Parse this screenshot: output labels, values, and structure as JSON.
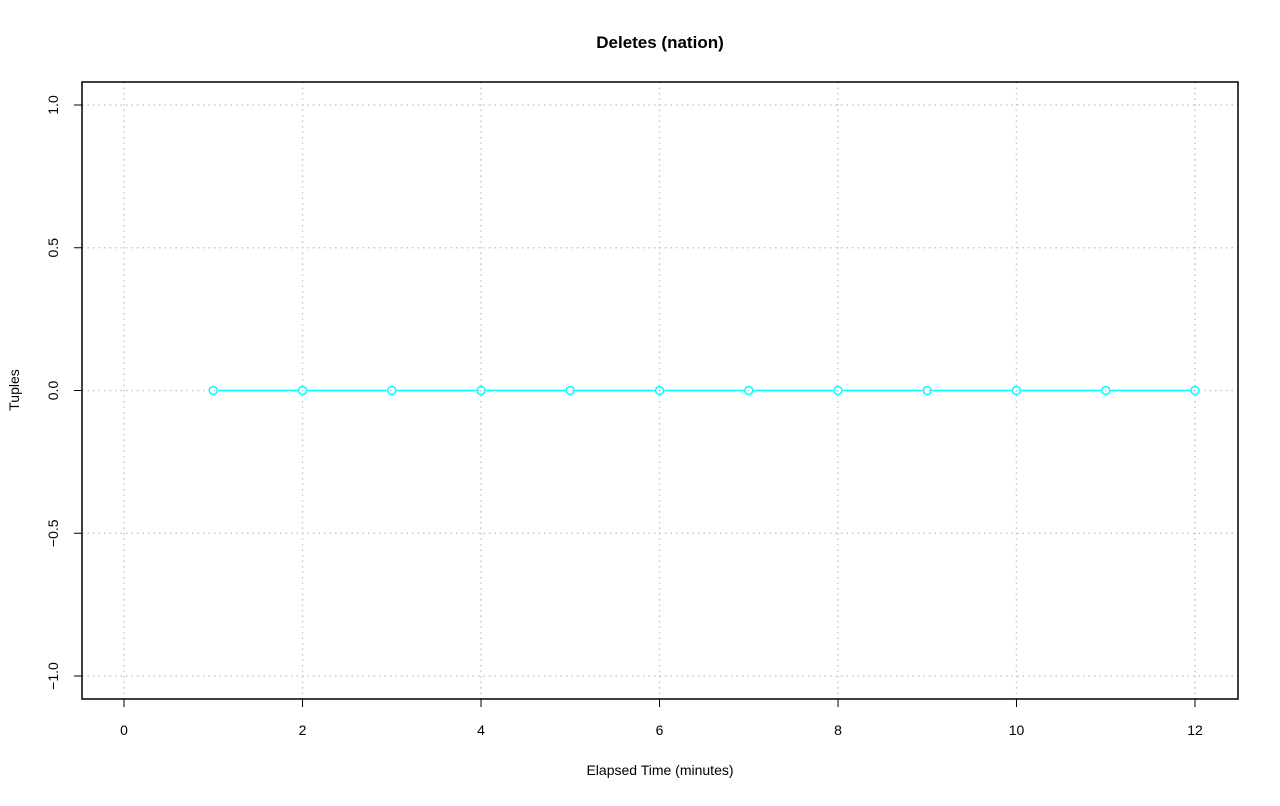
{
  "chart_data": {
    "type": "line",
    "title": "Deletes (nation)",
    "xlabel": "Elapsed Time (minutes)",
    "ylabel": "Tuples",
    "xlim": [
      0,
      12
    ],
    "ylim": [
      -1.0,
      1.0
    ],
    "x_ticks": [
      "0",
      "2",
      "4",
      "6",
      "8",
      "10",
      "12"
    ],
    "y_ticks": [
      "-1.0",
      "-0.5",
      "0.0",
      "0.5",
      "1.0"
    ],
    "grid": true,
    "series": [
      {
        "color": "#00ffff",
        "marker": "open-circle",
        "x": [
          1,
          2,
          3,
          4,
          5,
          6,
          7,
          8,
          9,
          10,
          11,
          12
        ],
        "y": [
          0,
          0,
          0,
          0,
          0,
          0,
          0,
          0,
          0,
          0,
          0,
          0
        ]
      }
    ]
  }
}
